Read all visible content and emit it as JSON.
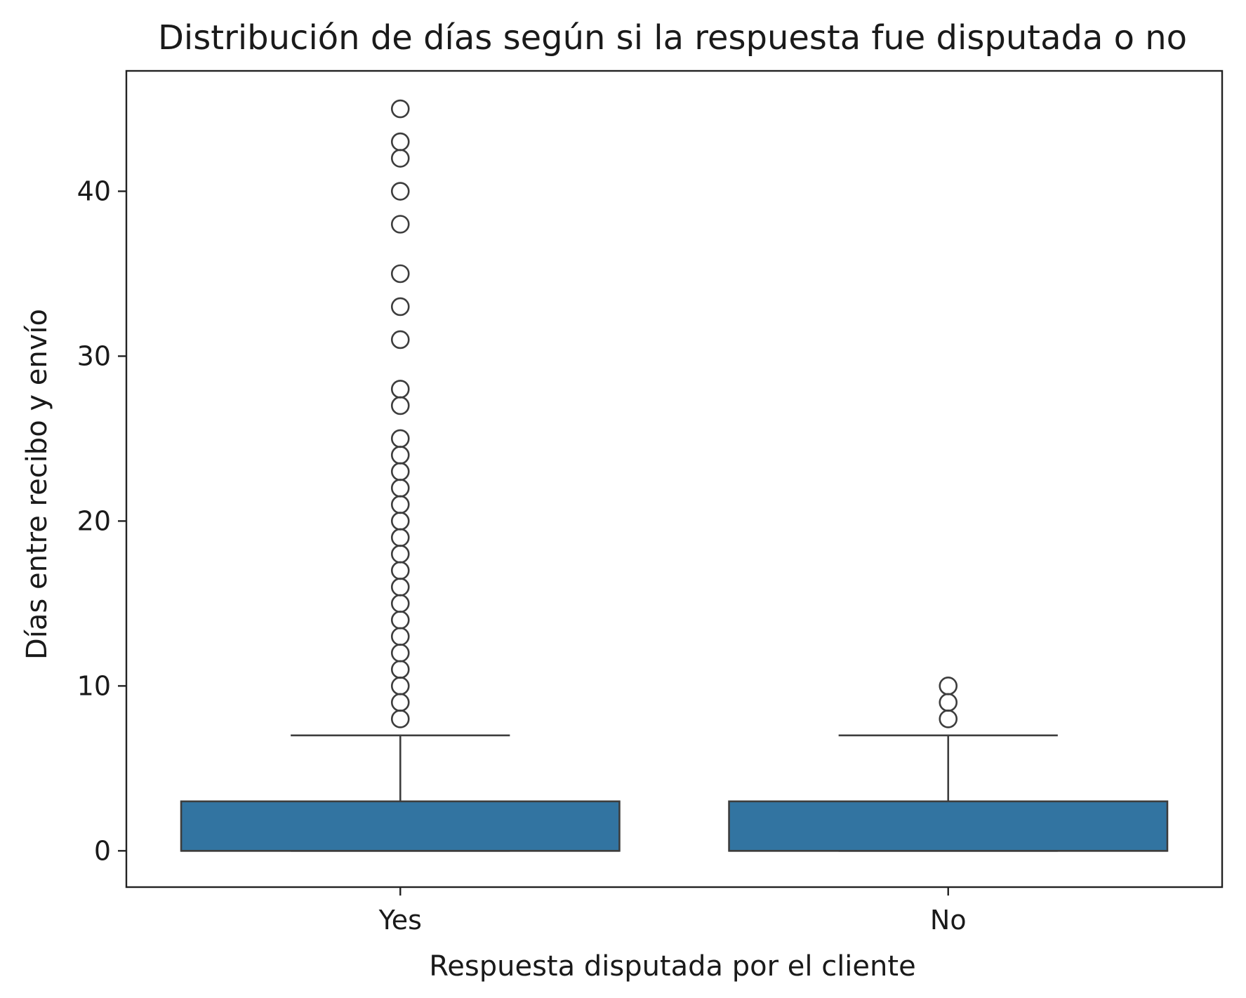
{
  "chart_data": {
    "type": "box",
    "title": "Distribución de días según si la respuesta fue disputada o no",
    "xlabel": "Respuesta disputada por el cliente",
    "ylabel": "Días entre recibo y envío",
    "categories": [
      "Yes",
      "No"
    ],
    "yticks": [
      0,
      10,
      20,
      30,
      40
    ],
    "ylim": [
      -2.2,
      47.3
    ],
    "grid": false,
    "colors": {
      "box": "#3274a1",
      "line": "#3d3d3d"
    },
    "series": [
      {
        "category": "Yes",
        "min": 0,
        "q1": 0,
        "median": 0,
        "q3": 3,
        "max": 7,
        "outliers": [
          8,
          9,
          10,
          11,
          12,
          13,
          14,
          15,
          16,
          17,
          18,
          19,
          20,
          21,
          22,
          23,
          24,
          25,
          27,
          28,
          31,
          33,
          35,
          38,
          40,
          42,
          43,
          45
        ]
      },
      {
        "category": "No",
        "min": 0,
        "q1": 0,
        "median": 0,
        "q3": 3,
        "max": 7,
        "outliers": [
          8,
          9,
          10
        ]
      }
    ]
  }
}
